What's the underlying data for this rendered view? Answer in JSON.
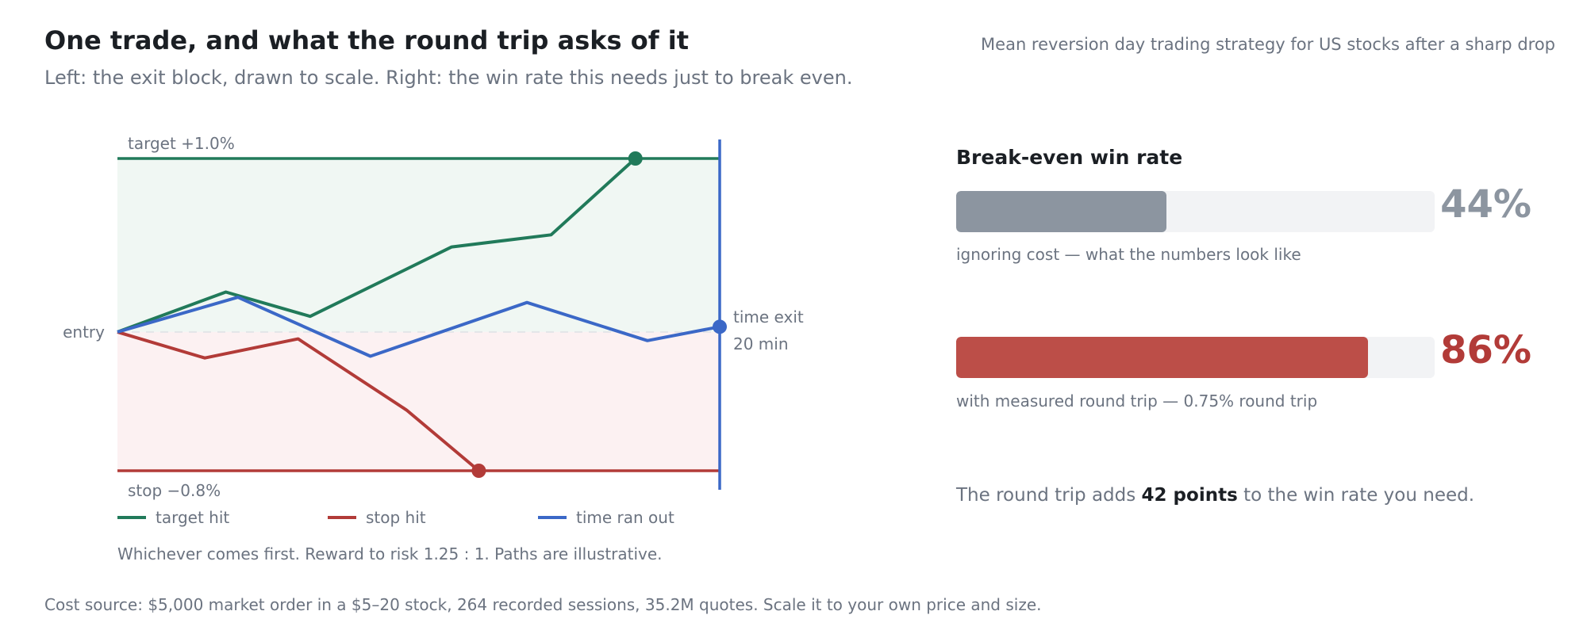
{
  "header": {
    "title": "One trade, and what the round trip asks of it",
    "subtitle": "Left: the exit block, drawn to scale. Right: the win rate this needs just to break even.",
    "context": "Mean reversion day trading strategy for US stocks after a sharp drop"
  },
  "colors": {
    "target": "#217a5a",
    "stop": "#b23b38",
    "time": "#3b68c7",
    "target_zone": "#f0f7f3",
    "stop_zone": "#fcf1f2",
    "bar_ignoring": "#8c95a0",
    "bar_measured": "#bc4e48",
    "track": "#f2f3f5"
  },
  "chart_data": [
    {
      "type": "line",
      "labels": {
        "target": "target +1.0%",
        "stop": "stop −0.8%",
        "entry": "entry",
        "time_exit_1": "time exit",
        "time_exit_2": "20 min"
      },
      "target_pct": 1.0,
      "stop_pct": -0.8,
      "ylim": [
        -0.8,
        1.0
      ],
      "xlim": [
        0,
        20
      ],
      "series": [
        {
          "name": "target hit",
          "color": "#217a5a",
          "x": [
            0,
            3.6,
            6.4,
            11.1,
            14.4,
            17.2
          ],
          "y": [
            0,
            0.23,
            0.09,
            0.49,
            0.56,
            1.0
          ]
        },
        {
          "name": "stop hit",
          "color": "#b23b38",
          "x": [
            0,
            2.9,
            6.0,
            9.6,
            12.0
          ],
          "y": [
            0,
            -0.15,
            -0.04,
            -0.45,
            -0.8
          ]
        },
        {
          "name": "time ran out",
          "color": "#3b68c7",
          "x": [
            0,
            4.0,
            8.4,
            13.6,
            17.6,
            20
          ],
          "y": [
            0,
            0.2,
            -0.14,
            0.17,
            -0.05,
            0.03
          ]
        }
      ],
      "note": "Whichever comes first. Reward to risk 1.25 : 1. Paths are illustrative."
    },
    {
      "type": "bar",
      "title": "Break-even win rate",
      "bars": [
        {
          "value": 44,
          "value_label": "44%",
          "caption": "ignoring cost — what the numbers look like",
          "color": "#8c95a0"
        },
        {
          "value": 86,
          "value_label": "86%",
          "caption": "with measured round trip — 0.75% round trip",
          "color": "#bc4e48"
        }
      ],
      "xlim": [
        0,
        100
      ]
    }
  ],
  "summary": {
    "before": "The round trip adds ",
    "emphasis": "42 points",
    "after": " to the win rate you need."
  },
  "footer": "Cost source: $5,000 market order in a $5–20 stock, 264 recorded sessions, 35.2M quotes. Scale it to your own price and size."
}
